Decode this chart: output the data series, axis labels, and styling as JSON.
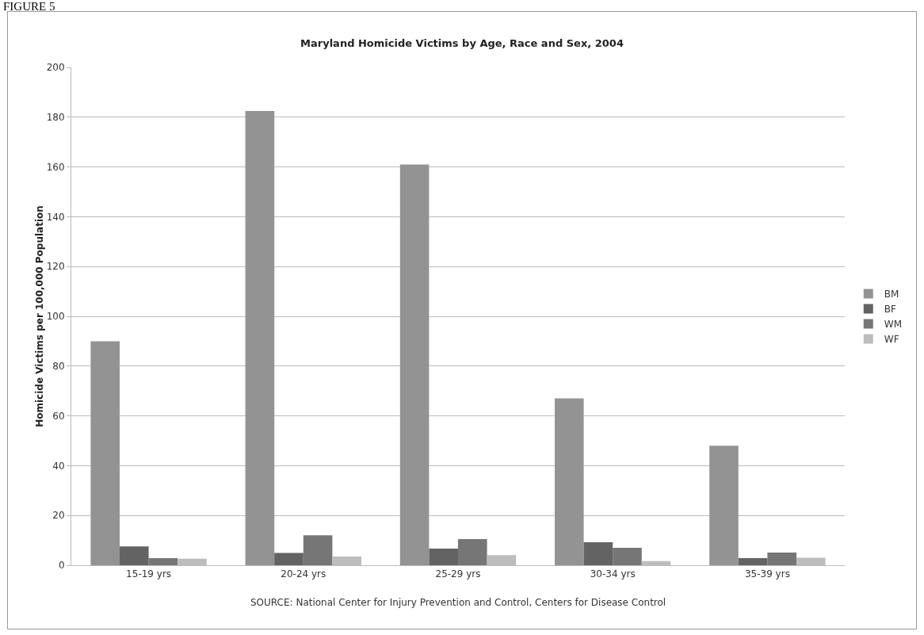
{
  "chart_data": {
    "type": "bar",
    "title": "Maryland Homicide Victims by Age, Race and Sex, 2004",
    "ylabel": "Homicide Victims per 100,000 Population",
    "categories": [
      "15-19 yrs",
      "20-24 yrs",
      "25-29 yrs",
      "30-34 yrs",
      "35-39 yrs"
    ],
    "series": [
      {
        "name": "BM",
        "color": "#939393",
        "values": [
          90,
          182.5,
          161,
          67,
          48
        ]
      },
      {
        "name": "BF",
        "color": "#636363",
        "values": [
          7.6,
          4.9,
          6.7,
          9.2,
          2.9
        ]
      },
      {
        "name": "WM",
        "color": "#767676",
        "values": [
          2.9,
          12,
          10.5,
          7,
          5.1
        ]
      },
      {
        "name": "WF",
        "color": "#bdbdbd",
        "values": [
          2.6,
          3.5,
          4.1,
          1.7,
          3
        ]
      }
    ],
    "ylim": [
      0,
      200
    ],
    "yticks": [
      0,
      20,
      40,
      60,
      80,
      100,
      120,
      140,
      160,
      180,
      200
    ],
    "grid": "y",
    "legend": "right",
    "annotations": [
      "FIGURE 5",
      "SOURCE: National Center for Injury Prevention and Control, Centers for Disease Control"
    ]
  }
}
